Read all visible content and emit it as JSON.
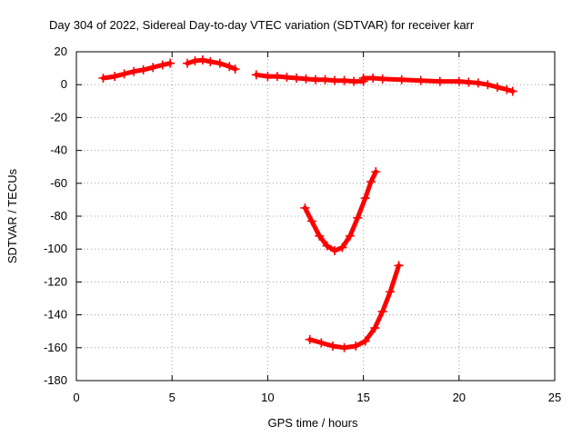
{
  "chart_data": {
    "type": "scatter",
    "title": "Day 304 of 2022, Sidereal Day-to-day VTEC variation (SDTVAR) for receiver karr",
    "xlabel": "GPS time / hours",
    "ylabel": "SDTVAR / TECUs",
    "xlim": [
      0,
      25
    ],
    "ylim": [
      -180,
      20
    ],
    "xticks": [
      0,
      5,
      10,
      15,
      20,
      25
    ],
    "yticks": [
      -180,
      -160,
      -140,
      -120,
      -100,
      -80,
      -60,
      -40,
      -20,
      0,
      20
    ],
    "grid": true,
    "color": "#ff0000",
    "series": [
      {
        "name": "segment-1",
        "x": [
          1.4,
          2.0,
          2.5,
          3.0,
          3.5,
          4.0,
          4.5,
          4.9
        ],
        "y": [
          4,
          5,
          6.5,
          8,
          9,
          10.5,
          12,
          13
        ]
      },
      {
        "name": "segment-2",
        "x": [
          5.8,
          6.2,
          6.6,
          7.0,
          7.5,
          8.0,
          8.3
        ],
        "y": [
          13,
          14.5,
          15,
          14,
          13,
          11,
          9.5
        ]
      },
      {
        "name": "segment-3",
        "x": [
          9.4,
          10.0,
          10.5,
          11.0,
          11.5,
          12.0,
          12.5,
          13.0,
          13.5,
          14.0,
          14.5,
          15.0
        ],
        "y": [
          6,
          5,
          5,
          4.5,
          4,
          3.5,
          3,
          3,
          2.5,
          2.5,
          2,
          2
        ]
      },
      {
        "name": "segment-4",
        "x": [
          15.0,
          15.5,
          16.0,
          17.0,
          18.0,
          19.0,
          20.0,
          20.5,
          21.0,
          21.5,
          22.0,
          22.5,
          22.8
        ],
        "y": [
          4,
          4,
          3.5,
          3,
          2.5,
          2,
          2,
          1.5,
          1,
          0,
          -1.5,
          -3,
          -4
        ]
      },
      {
        "name": "segment-5",
        "x": [
          11.95,
          12.3,
          12.7,
          13.1,
          13.5,
          13.9,
          14.3,
          14.7,
          15.1,
          15.4,
          15.65
        ],
        "y": [
          -75,
          -83,
          -92,
          -98,
          -101,
          -99,
          -92,
          -81,
          -69,
          -59,
          -53
        ]
      },
      {
        "name": "segment-6",
        "x": [
          12.2,
          12.8,
          13.4,
          14.0,
          14.6,
          15.1,
          15.6,
          16.0,
          16.4,
          16.85
        ],
        "y": [
          -155,
          -157,
          -159,
          -160,
          -159,
          -156,
          -148,
          -138,
          -126,
          -110
        ]
      }
    ]
  }
}
